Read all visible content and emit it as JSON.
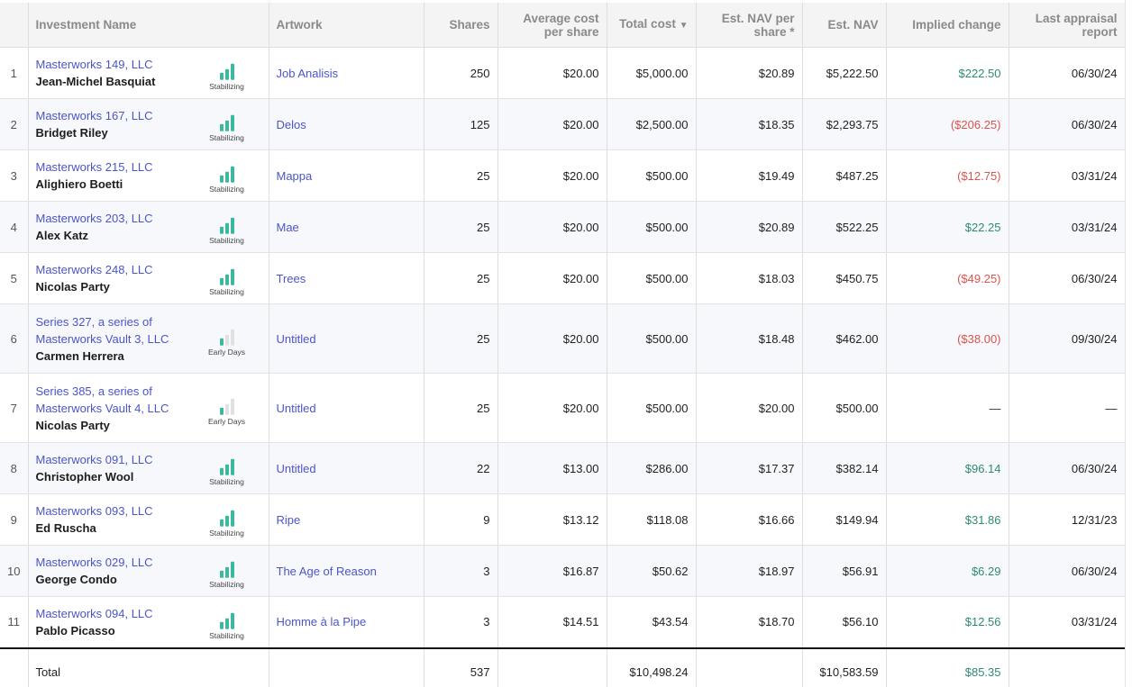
{
  "headers": {
    "investment_name": "Investment Name",
    "artwork": "Artwork",
    "shares": "Shares",
    "avg_cost": "Average cost per share",
    "total_cost": "Total cost",
    "total_cost_sort_icon": "▼",
    "est_nav_per_share": "Est. NAV per share *",
    "est_nav": "Est. NAV",
    "implied_change": "Implied change",
    "last_appraisal": "Last appraisal report"
  },
  "colors": {
    "link": "#4b55c9",
    "positive": "#2e8b74",
    "negative": "#d9534f",
    "bar_on": "#3cb89f",
    "bar_off": "#e1e1e1"
  },
  "rows": [
    {
      "num": "1",
      "entity": "Masterworks 149, LLC",
      "artist": "Jean-Michel Basquiat",
      "stage": "Stabilizing",
      "level": 3,
      "artwork": "Job Analisis",
      "shares": "250",
      "avg_cost": "$20.00",
      "total_cost": "$5,000.00",
      "nav_per_share": "$20.89",
      "nav": "$5,222.50",
      "change": "$222.50",
      "change_type": "pos",
      "appraisal": "06/30/24"
    },
    {
      "num": "2",
      "entity": "Masterworks 167, LLC",
      "artist": "Bridget Riley",
      "stage": "Stabilizing",
      "level": 3,
      "artwork": "Delos",
      "shares": "125",
      "avg_cost": "$20.00",
      "total_cost": "$2,500.00",
      "nav_per_share": "$18.35",
      "nav": "$2,293.75",
      "change": "($206.25)",
      "change_type": "neg",
      "appraisal": "06/30/24"
    },
    {
      "num": "3",
      "entity": "Masterworks 215, LLC",
      "artist": "Alighiero Boetti",
      "stage": "Stabilizing",
      "level": 3,
      "artwork": "Mappa",
      "shares": "25",
      "avg_cost": "$20.00",
      "total_cost": "$500.00",
      "nav_per_share": "$19.49",
      "nav": "$487.25",
      "change": "($12.75)",
      "change_type": "neg",
      "appraisal": "03/31/24"
    },
    {
      "num": "4",
      "entity": "Masterworks 203, LLC",
      "artist": "Alex Katz",
      "stage": "Stabilizing",
      "level": 3,
      "artwork": "Mae",
      "shares": "25",
      "avg_cost": "$20.00",
      "total_cost": "$500.00",
      "nav_per_share": "$20.89",
      "nav": "$522.25",
      "change": "$22.25",
      "change_type": "pos",
      "appraisal": "03/31/24"
    },
    {
      "num": "5",
      "entity": "Masterworks 248, LLC",
      "artist": "Nicolas Party",
      "stage": "Stabilizing",
      "level": 3,
      "artwork": "Trees",
      "shares": "25",
      "avg_cost": "$20.00",
      "total_cost": "$500.00",
      "nav_per_share": "$18.03",
      "nav": "$450.75",
      "change": "($49.25)",
      "change_type": "neg",
      "appraisal": "06/30/24"
    },
    {
      "num": "6",
      "entity": "Series 327, a series of Masterworks Vault 3, LLC",
      "artist": "Carmen Herrera",
      "stage": "Early Days",
      "level": 1,
      "artwork": "Untitled",
      "shares": "25",
      "avg_cost": "$20.00",
      "total_cost": "$500.00",
      "nav_per_share": "$18.48",
      "nav": "$462.00",
      "change": "($38.00)",
      "change_type": "neg",
      "appraisal": "09/30/24"
    },
    {
      "num": "7",
      "entity": "Series 385, a series of Masterworks Vault 4, LLC",
      "artist": "Nicolas Party",
      "stage": "Early Days",
      "level": 1,
      "artwork": "Untitled",
      "shares": "25",
      "avg_cost": "$20.00",
      "total_cost": "$500.00",
      "nav_per_share": "$20.00",
      "nav": "$500.00",
      "change": "—",
      "change_type": "none",
      "appraisal": "—"
    },
    {
      "num": "8",
      "entity": "Masterworks 091, LLC",
      "artist": "Christopher Wool",
      "stage": "Stabilizing",
      "level": 3,
      "artwork": "Untitled",
      "shares": "22",
      "avg_cost": "$13.00",
      "total_cost": "$286.00",
      "nav_per_share": "$17.37",
      "nav": "$382.14",
      "change": "$96.14",
      "change_type": "pos",
      "appraisal": "06/30/24"
    },
    {
      "num": "9",
      "entity": "Masterworks 093, LLC",
      "artist": "Ed Ruscha",
      "stage": "Stabilizing",
      "level": 3,
      "artwork": "Ripe",
      "shares": "9",
      "avg_cost": "$13.12",
      "total_cost": "$118.08",
      "nav_per_share": "$16.66",
      "nav": "$149.94",
      "change": "$31.86",
      "change_type": "pos",
      "appraisal": "12/31/23"
    },
    {
      "num": "10",
      "entity": "Masterworks 029, LLC",
      "artist": "George Condo",
      "stage": "Stabilizing",
      "level": 3,
      "artwork": "The Age of Reason",
      "shares": "3",
      "avg_cost": "$16.87",
      "total_cost": "$50.62",
      "nav_per_share": "$18.97",
      "nav": "$56.91",
      "change": "$6.29",
      "change_type": "pos",
      "appraisal": "06/30/24"
    },
    {
      "num": "11",
      "entity": "Masterworks 094, LLC",
      "artist": "Pablo Picasso",
      "stage": "Stabilizing",
      "level": 3,
      "artwork": "Homme à la Pipe",
      "shares": "3",
      "avg_cost": "$14.51",
      "total_cost": "$43.54",
      "nav_per_share": "$18.70",
      "nav": "$56.10",
      "change": "$12.56",
      "change_type": "pos",
      "appraisal": "03/31/24"
    }
  ],
  "total": {
    "label": "Total",
    "shares": "537",
    "total_cost": "$10,498.24",
    "nav": "$10,583.59",
    "change": "$85.35"
  }
}
